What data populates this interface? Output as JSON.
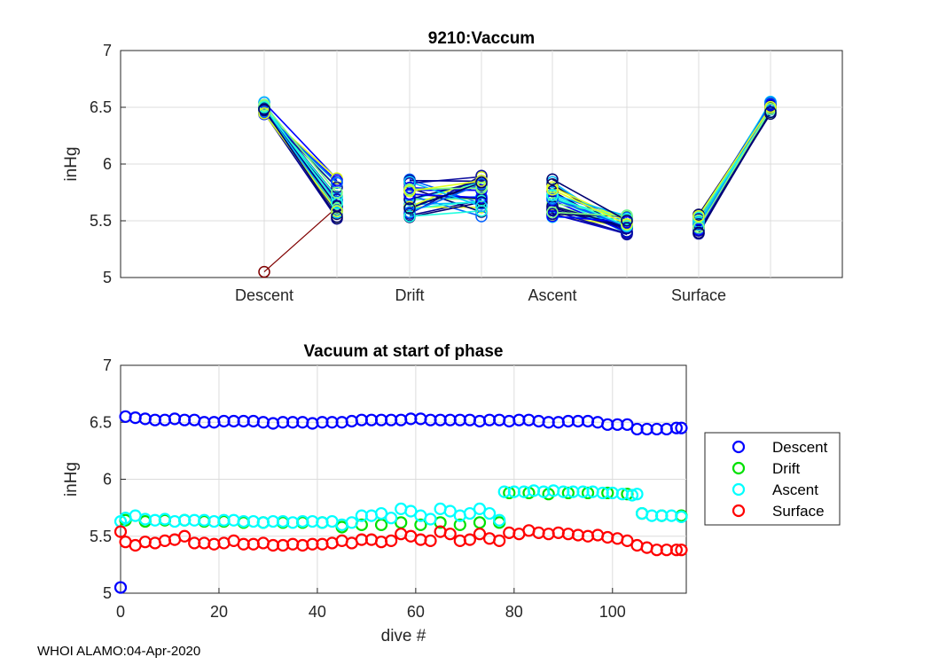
{
  "chart_data": [
    {
      "type": "line",
      "title": "9210:Vaccum",
      "ylabel": "inHg",
      "xlabel": "",
      "ylim": [
        5,
        7
      ],
      "yticks": [
        "5",
        "5.5",
        "6",
        "6.5",
        "7"
      ],
      "categories": [
        "Descent",
        "Drift",
        "Ascent",
        "Surface"
      ],
      "grid": true,
      "phase_segments": [
        {
          "phase": "Descent",
          "start_range": [
            6.43,
            6.55
          ],
          "end_range": [
            5.5,
            5.88
          ],
          "outlier": {
            "start": 5.05,
            "end": 5.62
          }
        },
        {
          "phase": "Drift",
          "start_range": [
            5.53,
            5.88
          ],
          "end_range": [
            5.53,
            5.9
          ]
        },
        {
          "phase": "Ascent",
          "start_range": [
            5.53,
            5.9
          ],
          "end_range": [
            5.38,
            5.56
          ]
        },
        {
          "phase": "Surface",
          "start_range": [
            5.38,
            5.56
          ],
          "end_range": [
            6.44,
            6.55
          ]
        }
      ]
    },
    {
      "type": "scatter",
      "title": "Vacuum at start of phase",
      "xlabel": "dive #",
      "ylabel": "inHg",
      "xlim": [
        0,
        115
      ],
      "ylim": [
        5,
        7
      ],
      "xticks": [
        "0",
        "20",
        "40",
        "60",
        "80",
        "100"
      ],
      "yticks": [
        "5",
        "5.5",
        "6",
        "6.5",
        "7"
      ],
      "grid": true,
      "legend_position": "outside-right",
      "series": [
        {
          "name": "Descent",
          "color": "#0000ff",
          "points": [
            [
              0,
              5.05
            ],
            [
              1,
              6.55
            ],
            [
              3,
              6.54
            ],
            [
              5,
              6.53
            ],
            [
              7,
              6.52
            ],
            [
              9,
              6.52
            ],
            [
              11,
              6.53
            ],
            [
              13,
              6.52
            ],
            [
              15,
              6.52
            ],
            [
              17,
              6.5
            ],
            [
              19,
              6.5
            ],
            [
              21,
              6.51
            ],
            [
              23,
              6.51
            ],
            [
              25,
              6.51
            ],
            [
              27,
              6.51
            ],
            [
              29,
              6.5
            ],
            [
              31,
              6.49
            ],
            [
              33,
              6.5
            ],
            [
              35,
              6.5
            ],
            [
              37,
              6.5
            ],
            [
              39,
              6.49
            ],
            [
              41,
              6.5
            ],
            [
              43,
              6.5
            ],
            [
              45,
              6.5
            ],
            [
              47,
              6.51
            ],
            [
              49,
              6.52
            ],
            [
              51,
              6.52
            ],
            [
              53,
              6.52
            ],
            [
              55,
              6.52
            ],
            [
              57,
              6.52
            ],
            [
              59,
              6.53
            ],
            [
              61,
              6.53
            ],
            [
              63,
              6.52
            ],
            [
              65,
              6.52
            ],
            [
              67,
              6.52
            ],
            [
              69,
              6.52
            ],
            [
              71,
              6.52
            ],
            [
              73,
              6.51
            ],
            [
              75,
              6.52
            ],
            [
              77,
              6.52
            ],
            [
              79,
              6.51
            ],
            [
              81,
              6.52
            ],
            [
              83,
              6.52
            ],
            [
              85,
              6.51
            ],
            [
              87,
              6.5
            ],
            [
              89,
              6.5
            ],
            [
              91,
              6.51
            ],
            [
              93,
              6.51
            ],
            [
              95,
              6.51
            ],
            [
              97,
              6.5
            ],
            [
              99,
              6.48
            ],
            [
              101,
              6.48
            ],
            [
              103,
              6.48
            ],
            [
              105,
              6.44
            ],
            [
              107,
              6.44
            ],
            [
              109,
              6.44
            ],
            [
              111,
              6.44
            ],
            [
              113,
              6.45
            ],
            [
              114,
              6.45
            ]
          ]
        },
        {
          "name": "Drift",
          "color": "#00e000",
          "points": [
            [
              1,
              5.64
            ],
            [
              5,
              5.63
            ],
            [
              9,
              5.64
            ],
            [
              13,
              5.64
            ],
            [
              17,
              5.63
            ],
            [
              21,
              5.63
            ],
            [
              25,
              5.62
            ],
            [
              29,
              5.62
            ],
            [
              33,
              5.62
            ],
            [
              37,
              5.62
            ],
            [
              41,
              5.62
            ],
            [
              45,
              5.58
            ],
            [
              49,
              5.6
            ],
            [
              53,
              5.6
            ],
            [
              57,
              5.62
            ],
            [
              61,
              5.6
            ],
            [
              65,
              5.62
            ],
            [
              69,
              5.6
            ],
            [
              73,
              5.62
            ],
            [
              77,
              5.62
            ],
            [
              79,
              5.88
            ],
            [
              83,
              5.88
            ],
            [
              87,
              5.87
            ],
            [
              91,
              5.88
            ],
            [
              95,
              5.88
            ],
            [
              99,
              5.88
            ],
            [
              103,
              5.87
            ],
            [
              106,
              5.7
            ],
            [
              110,
              5.68
            ],
            [
              114,
              5.68
            ]
          ]
        },
        {
          "name": "Ascent",
          "color": "#00ffff",
          "points": [
            [
              0,
              5.63
            ],
            [
              1,
              5.66
            ],
            [
              3,
              5.68
            ],
            [
              5,
              5.65
            ],
            [
              7,
              5.64
            ],
            [
              9,
              5.65
            ],
            [
              11,
              5.63
            ],
            [
              13,
              5.64
            ],
            [
              15,
              5.64
            ],
            [
              17,
              5.64
            ],
            [
              19,
              5.63
            ],
            [
              21,
              5.64
            ],
            [
              23,
              5.64
            ],
            [
              25,
              5.63
            ],
            [
              27,
              5.63
            ],
            [
              29,
              5.62
            ],
            [
              31,
              5.63
            ],
            [
              33,
              5.63
            ],
            [
              35,
              5.62
            ],
            [
              37,
              5.63
            ],
            [
              39,
              5.63
            ],
            [
              41,
              5.62
            ],
            [
              43,
              5.63
            ],
            [
              45,
              5.6
            ],
            [
              47,
              5.62
            ],
            [
              49,
              5.68
            ],
            [
              51,
              5.68
            ],
            [
              53,
              5.7
            ],
            [
              55,
              5.66
            ],
            [
              57,
              5.74
            ],
            [
              59,
              5.72
            ],
            [
              61,
              5.68
            ],
            [
              63,
              5.65
            ],
            [
              65,
              5.74
            ],
            [
              67,
              5.72
            ],
            [
              69,
              5.68
            ],
            [
              71,
              5.7
            ],
            [
              73,
              5.74
            ],
            [
              75,
              5.7
            ],
            [
              77,
              5.64
            ],
            [
              78,
              5.89
            ],
            [
              80,
              5.89
            ],
            [
              82,
              5.89
            ],
            [
              84,
              5.9
            ],
            [
              86,
              5.89
            ],
            [
              88,
              5.9
            ],
            [
              90,
              5.89
            ],
            [
              92,
              5.89
            ],
            [
              94,
              5.89
            ],
            [
              96,
              5.89
            ],
            [
              98,
              5.88
            ],
            [
              100,
              5.88
            ],
            [
              102,
              5.87
            ],
            [
              104,
              5.86
            ],
            [
              105,
              5.87
            ],
            [
              106,
              5.7
            ],
            [
              108,
              5.68
            ],
            [
              110,
              5.68
            ],
            [
              112,
              5.68
            ],
            [
              114,
              5.67
            ]
          ]
        },
        {
          "name": "Surface",
          "color": "#ff0000",
          "points": [
            [
              0,
              5.54
            ],
            [
              1,
              5.45
            ],
            [
              3,
              5.42
            ],
            [
              5,
              5.45
            ],
            [
              7,
              5.44
            ],
            [
              9,
              5.46
            ],
            [
              11,
              5.47
            ],
            [
              13,
              5.5
            ],
            [
              15,
              5.44
            ],
            [
              17,
              5.44
            ],
            [
              19,
              5.43
            ],
            [
              21,
              5.44
            ],
            [
              23,
              5.46
            ],
            [
              25,
              5.43
            ],
            [
              27,
              5.43
            ],
            [
              29,
              5.44
            ],
            [
              31,
              5.42
            ],
            [
              33,
              5.42
            ],
            [
              35,
              5.43
            ],
            [
              37,
              5.42
            ],
            [
              39,
              5.43
            ],
            [
              41,
              5.43
            ],
            [
              43,
              5.44
            ],
            [
              45,
              5.46
            ],
            [
              47,
              5.44
            ],
            [
              49,
              5.47
            ],
            [
              51,
              5.47
            ],
            [
              53,
              5.45
            ],
            [
              55,
              5.46
            ],
            [
              57,
              5.52
            ],
            [
              59,
              5.5
            ],
            [
              61,
              5.47
            ],
            [
              63,
              5.46
            ],
            [
              65,
              5.54
            ],
            [
              67,
              5.52
            ],
            [
              69,
              5.46
            ],
            [
              71,
              5.47
            ],
            [
              73,
              5.52
            ],
            [
              75,
              5.48
            ],
            [
              77,
              5.46
            ],
            [
              79,
              5.53
            ],
            [
              81,
              5.52
            ],
            [
              83,
              5.55
            ],
            [
              85,
              5.53
            ],
            [
              87,
              5.52
            ],
            [
              89,
              5.53
            ],
            [
              91,
              5.52
            ],
            [
              93,
              5.51
            ],
            [
              95,
              5.5
            ],
            [
              97,
              5.51
            ],
            [
              99,
              5.49
            ],
            [
              101,
              5.48
            ],
            [
              103,
              5.46
            ],
            [
              105,
              5.42
            ],
            [
              107,
              5.4
            ],
            [
              109,
              5.38
            ],
            [
              111,
              5.38
            ],
            [
              113,
              5.38
            ],
            [
              114,
              5.38
            ]
          ]
        }
      ]
    }
  ],
  "footer": "WHOI ALAMO:04-Apr-2020"
}
